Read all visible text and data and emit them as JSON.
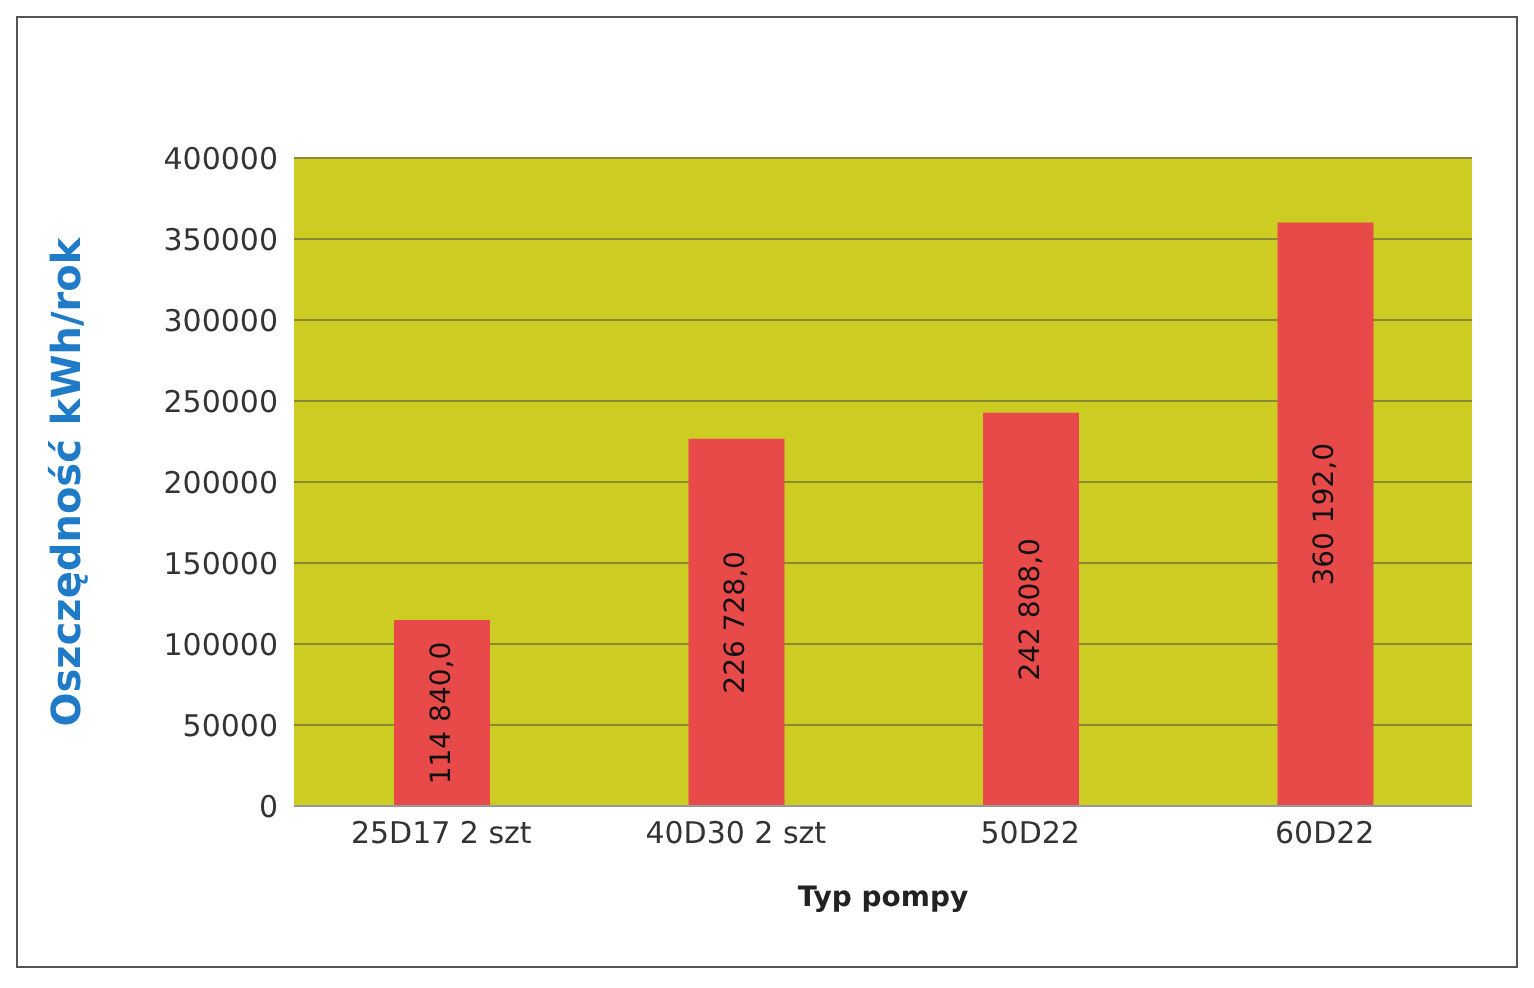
{
  "chart_data": {
    "type": "bar",
    "xlabel": "Typ pompy",
    "ylabel": "Oszczędność  kWh/rok",
    "categories": [
      "25D17 2 szt",
      "40D30 2 szt",
      "50D22",
      "60D22"
    ],
    "values": [
      114840,
      226728,
      242808,
      360192
    ],
    "value_labels": [
      "114 840,0",
      "226 728,0",
      "242 808,0",
      "360 192,0"
    ],
    "color": "#e84a4a",
    "ylim": [
      0,
      400000
    ],
    "yticks": [
      0,
      50000,
      100000,
      150000,
      200000,
      250000,
      300000,
      350000,
      400000
    ],
    "grid": "y"
  }
}
